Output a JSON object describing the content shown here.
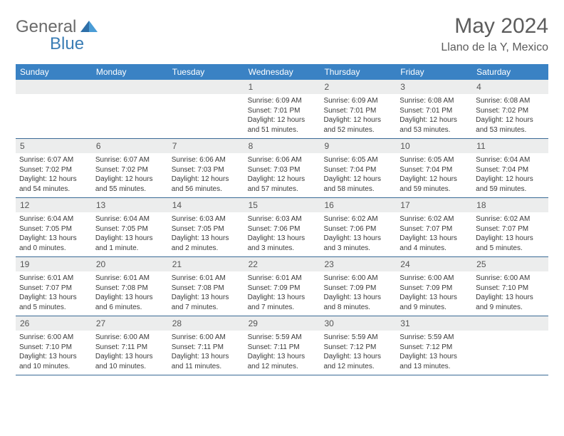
{
  "logo": {
    "text1": "General",
    "text2": "Blue",
    "icon_color": "#2e6fa8"
  },
  "title": "May 2024",
  "location": "Llano de la Y, Mexico",
  "colors": {
    "header_bg": "#3a82c4",
    "header_text": "#ffffff",
    "daynum_bg": "#eceded",
    "border": "#3a6a95",
    "text": "#3a3a3a",
    "title_color": "#5c5c5c"
  },
  "day_headers": [
    "Sunday",
    "Monday",
    "Tuesday",
    "Wednesday",
    "Thursday",
    "Friday",
    "Saturday"
  ],
  "weeks": [
    [
      null,
      null,
      null,
      {
        "n": "1",
        "sunrise": "6:09 AM",
        "sunset": "7:01 PM",
        "daylight": "12 hours and 51 minutes."
      },
      {
        "n": "2",
        "sunrise": "6:09 AM",
        "sunset": "7:01 PM",
        "daylight": "12 hours and 52 minutes."
      },
      {
        "n": "3",
        "sunrise": "6:08 AM",
        "sunset": "7:01 PM",
        "daylight": "12 hours and 53 minutes."
      },
      {
        "n": "4",
        "sunrise": "6:08 AM",
        "sunset": "7:02 PM",
        "daylight": "12 hours and 53 minutes."
      }
    ],
    [
      {
        "n": "5",
        "sunrise": "6:07 AM",
        "sunset": "7:02 PM",
        "daylight": "12 hours and 54 minutes."
      },
      {
        "n": "6",
        "sunrise": "6:07 AM",
        "sunset": "7:02 PM",
        "daylight": "12 hours and 55 minutes."
      },
      {
        "n": "7",
        "sunrise": "6:06 AM",
        "sunset": "7:03 PM",
        "daylight": "12 hours and 56 minutes."
      },
      {
        "n": "8",
        "sunrise": "6:06 AM",
        "sunset": "7:03 PM",
        "daylight": "12 hours and 57 minutes."
      },
      {
        "n": "9",
        "sunrise": "6:05 AM",
        "sunset": "7:04 PM",
        "daylight": "12 hours and 58 minutes."
      },
      {
        "n": "10",
        "sunrise": "6:05 AM",
        "sunset": "7:04 PM",
        "daylight": "12 hours and 59 minutes."
      },
      {
        "n": "11",
        "sunrise": "6:04 AM",
        "sunset": "7:04 PM",
        "daylight": "12 hours and 59 minutes."
      }
    ],
    [
      {
        "n": "12",
        "sunrise": "6:04 AM",
        "sunset": "7:05 PM",
        "daylight": "13 hours and 0 minutes."
      },
      {
        "n": "13",
        "sunrise": "6:04 AM",
        "sunset": "7:05 PM",
        "daylight": "13 hours and 1 minute."
      },
      {
        "n": "14",
        "sunrise": "6:03 AM",
        "sunset": "7:05 PM",
        "daylight": "13 hours and 2 minutes."
      },
      {
        "n": "15",
        "sunrise": "6:03 AM",
        "sunset": "7:06 PM",
        "daylight": "13 hours and 3 minutes."
      },
      {
        "n": "16",
        "sunrise": "6:02 AM",
        "sunset": "7:06 PM",
        "daylight": "13 hours and 3 minutes."
      },
      {
        "n": "17",
        "sunrise": "6:02 AM",
        "sunset": "7:07 PM",
        "daylight": "13 hours and 4 minutes."
      },
      {
        "n": "18",
        "sunrise": "6:02 AM",
        "sunset": "7:07 PM",
        "daylight": "13 hours and 5 minutes."
      }
    ],
    [
      {
        "n": "19",
        "sunrise": "6:01 AM",
        "sunset": "7:07 PM",
        "daylight": "13 hours and 5 minutes."
      },
      {
        "n": "20",
        "sunrise": "6:01 AM",
        "sunset": "7:08 PM",
        "daylight": "13 hours and 6 minutes."
      },
      {
        "n": "21",
        "sunrise": "6:01 AM",
        "sunset": "7:08 PM",
        "daylight": "13 hours and 7 minutes."
      },
      {
        "n": "22",
        "sunrise": "6:01 AM",
        "sunset": "7:09 PM",
        "daylight": "13 hours and 7 minutes."
      },
      {
        "n": "23",
        "sunrise": "6:00 AM",
        "sunset": "7:09 PM",
        "daylight": "13 hours and 8 minutes."
      },
      {
        "n": "24",
        "sunrise": "6:00 AM",
        "sunset": "7:09 PM",
        "daylight": "13 hours and 9 minutes."
      },
      {
        "n": "25",
        "sunrise": "6:00 AM",
        "sunset": "7:10 PM",
        "daylight": "13 hours and 9 minutes."
      }
    ],
    [
      {
        "n": "26",
        "sunrise": "6:00 AM",
        "sunset": "7:10 PM",
        "daylight": "13 hours and 10 minutes."
      },
      {
        "n": "27",
        "sunrise": "6:00 AM",
        "sunset": "7:11 PM",
        "daylight": "13 hours and 10 minutes."
      },
      {
        "n": "28",
        "sunrise": "6:00 AM",
        "sunset": "7:11 PM",
        "daylight": "13 hours and 11 minutes."
      },
      {
        "n": "29",
        "sunrise": "5:59 AM",
        "sunset": "7:11 PM",
        "daylight": "13 hours and 12 minutes."
      },
      {
        "n": "30",
        "sunrise": "5:59 AM",
        "sunset": "7:12 PM",
        "daylight": "13 hours and 12 minutes."
      },
      {
        "n": "31",
        "sunrise": "5:59 AM",
        "sunset": "7:12 PM",
        "daylight": "13 hours and 13 minutes."
      },
      null
    ]
  ],
  "labels": {
    "sunrise": "Sunrise:",
    "sunset": "Sunset:",
    "daylight": "Daylight:"
  }
}
